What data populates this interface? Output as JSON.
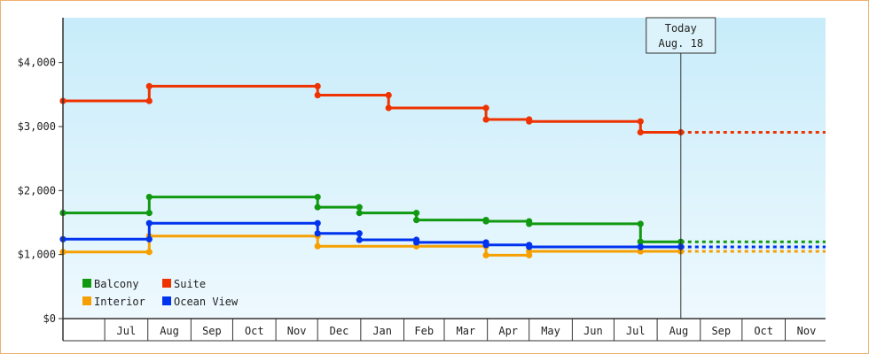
{
  "chart_data": {
    "type": "line",
    "step": true,
    "title": "",
    "xlabel": "",
    "ylabel": "",
    "ylim": [
      0,
      4700
    ],
    "y_ticks": [
      {
        "value": 0,
        "label": "$0"
      },
      {
        "value": 1000,
        "label": "$1,000"
      },
      {
        "value": 2000,
        "label": "$2,000"
      },
      {
        "value": 3000,
        "label": "$3,000"
      },
      {
        "value": 4000,
        "label": "$4,000"
      }
    ],
    "xlim": [
      "2015-06-01",
      "2016-11-30"
    ],
    "x_month_ticks": [
      {
        "label": "Jul",
        "date": "2015-07-01"
      },
      {
        "label": "Aug",
        "date": "2015-08-01"
      },
      {
        "label": "Sep",
        "date": "2015-09-01"
      },
      {
        "label": "Oct",
        "date": "2015-10-01"
      },
      {
        "label": "Nov",
        "date": "2015-11-01"
      },
      {
        "label": "Dec",
        "date": "2015-12-01"
      },
      {
        "label": "Jan",
        "date": "2016-01-01"
      },
      {
        "label": "Feb",
        "date": "2016-02-01"
      },
      {
        "label": "Mar",
        "date": "2016-03-01"
      },
      {
        "label": "Apr",
        "date": "2016-04-01"
      },
      {
        "label": "May",
        "date": "2016-05-01"
      },
      {
        "label": "Jun",
        "date": "2016-06-01"
      },
      {
        "label": "Jul",
        "date": "2016-07-01"
      },
      {
        "label": "Aug",
        "date": "2016-08-01"
      },
      {
        "label": "Sep",
        "date": "2016-09-01"
      },
      {
        "label": "Oct",
        "date": "2016-10-01"
      },
      {
        "label": "Nov",
        "date": "2016-11-01"
      }
    ],
    "today": {
      "line1": "Today",
      "line2": "Aug. 18",
      "date": "2016-08-18"
    },
    "projection_end": "2016-11-30",
    "series": [
      {
        "name": "Suite",
        "color": "#ee3300",
        "points": [
          [
            "2015-06-01",
            3400
          ],
          [
            "2015-08-02",
            3400
          ],
          [
            "2015-08-02",
            3630
          ],
          [
            "2015-12-01",
            3630
          ],
          [
            "2015-12-01",
            3490
          ],
          [
            "2016-01-21",
            3490
          ],
          [
            "2016-01-21",
            3290
          ],
          [
            "2016-03-31",
            3290
          ],
          [
            "2016-03-31",
            3110
          ],
          [
            "2016-05-01",
            3110
          ],
          [
            "2016-05-01",
            3080
          ],
          [
            "2016-07-20",
            3080
          ],
          [
            "2016-07-20",
            2910
          ],
          [
            "2016-08-18",
            2910
          ]
        ]
      },
      {
        "name": "Balcony",
        "color": "#119911",
        "points": [
          [
            "2015-06-01",
            1650
          ],
          [
            "2015-08-02",
            1650
          ],
          [
            "2015-08-02",
            1900
          ],
          [
            "2015-12-01",
            1900
          ],
          [
            "2015-12-01",
            1740
          ],
          [
            "2015-12-31",
            1740
          ],
          [
            "2015-12-31",
            1650
          ],
          [
            "2016-02-10",
            1650
          ],
          [
            "2016-02-10",
            1540
          ],
          [
            "2016-03-31",
            1540
          ],
          [
            "2016-03-31",
            1520
          ],
          [
            "2016-05-01",
            1520
          ],
          [
            "2016-05-01",
            1480
          ],
          [
            "2016-07-20",
            1480
          ],
          [
            "2016-07-20",
            1200
          ],
          [
            "2016-08-18",
            1200
          ]
        ]
      },
      {
        "name": "Interior",
        "color": "#f5a000",
        "points": [
          [
            "2015-06-01",
            1040
          ],
          [
            "2015-08-02",
            1040
          ],
          [
            "2015-08-02",
            1290
          ],
          [
            "2015-12-01",
            1290
          ],
          [
            "2015-12-01",
            1130
          ],
          [
            "2016-02-10",
            1130
          ],
          [
            "2016-02-10",
            1130
          ],
          [
            "2016-03-31",
            1130
          ],
          [
            "2016-03-31",
            990
          ],
          [
            "2016-05-01",
            990
          ],
          [
            "2016-05-01",
            1050
          ],
          [
            "2016-07-20",
            1050
          ],
          [
            "2016-07-20",
            1050
          ],
          [
            "2016-08-18",
            1050
          ]
        ]
      },
      {
        "name": "Ocean View",
        "color": "#0033ee",
        "points": [
          [
            "2015-06-01",
            1240
          ],
          [
            "2015-08-02",
            1240
          ],
          [
            "2015-08-02",
            1490
          ],
          [
            "2015-12-01",
            1490
          ],
          [
            "2015-12-01",
            1330
          ],
          [
            "2015-12-31",
            1330
          ],
          [
            "2015-12-31",
            1230
          ],
          [
            "2016-02-10",
            1230
          ],
          [
            "2016-02-10",
            1190
          ],
          [
            "2016-03-31",
            1190
          ],
          [
            "2016-03-31",
            1150
          ],
          [
            "2016-05-01",
            1150
          ],
          [
            "2016-05-01",
            1120
          ],
          [
            "2016-07-20",
            1120
          ],
          [
            "2016-07-20",
            1120
          ],
          [
            "2016-08-18",
            1120
          ]
        ]
      }
    ],
    "legend": {
      "placement": "bottom-left",
      "order": [
        "Balcony",
        "Suite",
        "Interior",
        "Ocean View"
      ]
    }
  },
  "colors": {
    "plot_top": "#c8ecfa",
    "plot_bottom": "#eef9fe",
    "frame_border": "#f0b070"
  }
}
